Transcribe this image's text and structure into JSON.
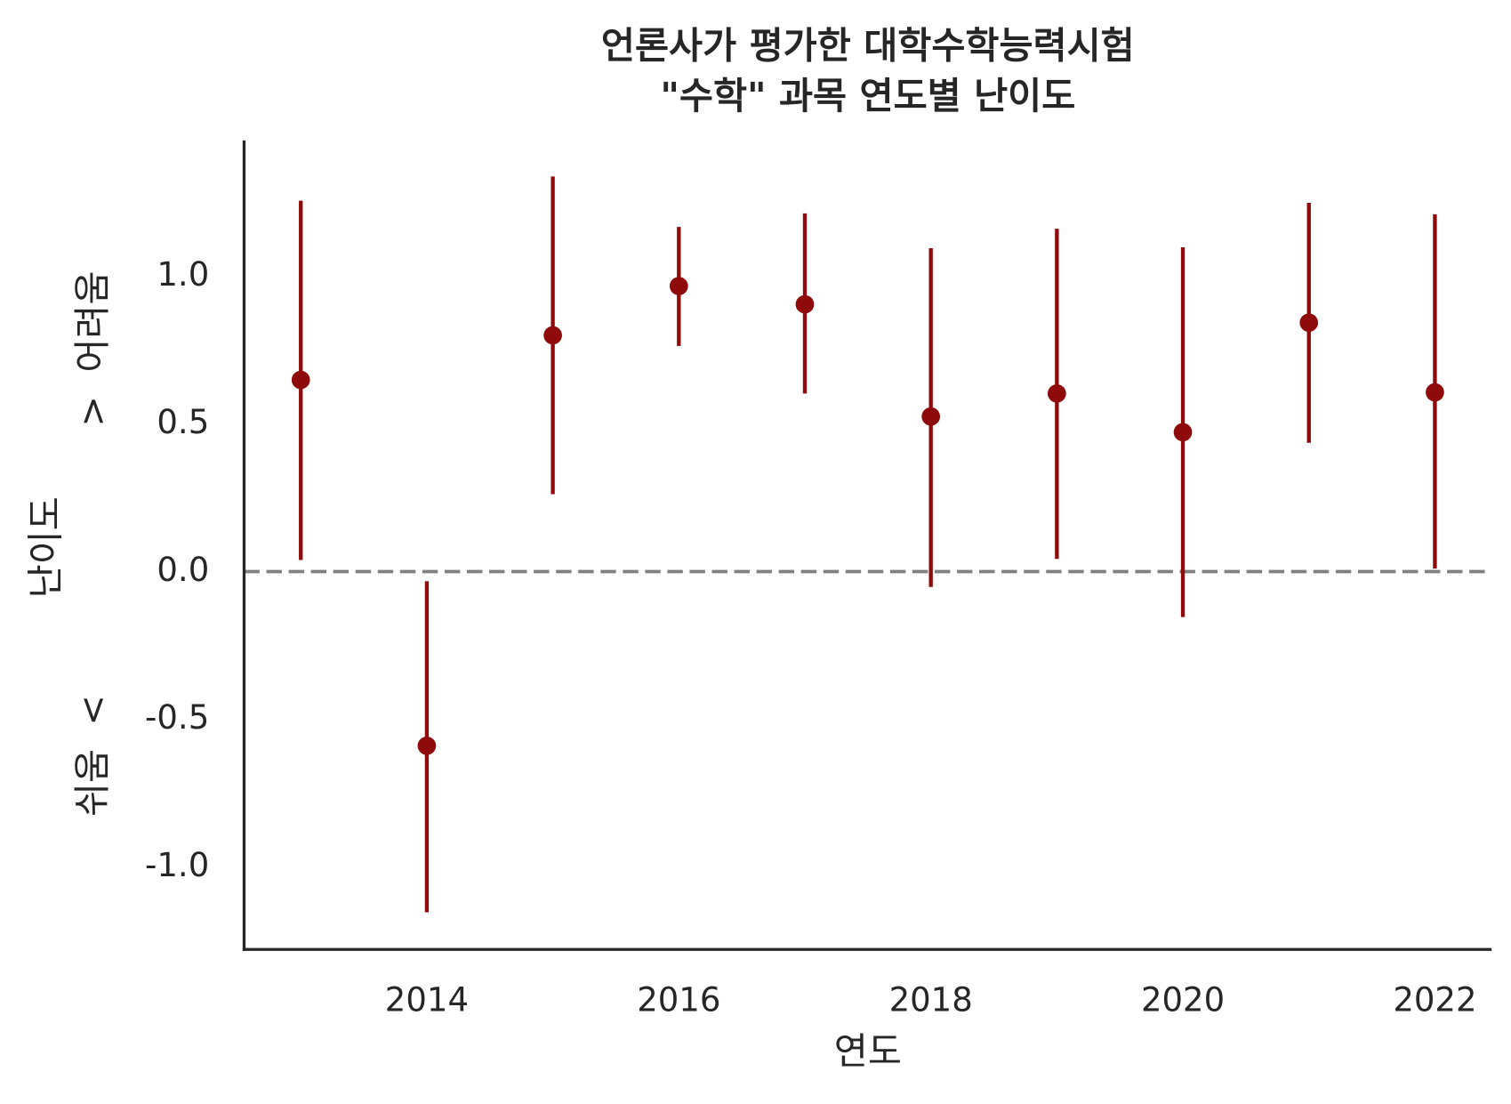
{
  "chart_data": {
    "type": "errorbar",
    "title": [
      "언론사가 평가한 대학수학능력시험",
      "\"수학\" 과목 연도별 난이도"
    ],
    "xlabel": "연도",
    "ylabel": "난이도",
    "annotations": [
      "쉬움  <",
      ">  어려움"
    ],
    "x": [
      2013,
      2014,
      2015,
      2016,
      2017,
      2018,
      2019,
      2020,
      2021,
      2022
    ],
    "series": [
      {
        "name": "난이도",
        "color": "#8f0b0b",
        "values": [
          0.649,
          -0.59,
          0.8,
          0.967,
          0.905,
          0.525,
          0.603,
          0.472,
          0.843,
          0.607
        ],
        "ci_low": [
          0.039,
          -1.154,
          0.262,
          0.764,
          0.603,
          -0.052,
          0.043,
          -0.154,
          0.436,
          0.01
        ],
        "ci_high": [
          1.256,
          -0.033,
          1.338,
          1.167,
          1.213,
          1.095,
          1.161,
          1.098,
          1.249,
          1.21
        ]
      }
    ],
    "hline": 0,
    "hline_color": "#808080",
    "xlim": [
      2012.55,
      2022.45
    ],
    "xticks": [
      2014,
      2016,
      2018,
      2020,
      2022
    ],
    "ylim": [
      -1.28,
      1.46
    ],
    "yticks": [
      {
        "value": -1,
        "label": "-1.0"
      },
      {
        "value": -0.5,
        "label": "-0.5"
      },
      {
        "value": 0,
        "label": "0.0"
      },
      {
        "value": 0.5,
        "label": "0.5"
      },
      {
        "value": 1,
        "label": "1.0"
      }
    ],
    "grid": false
  }
}
